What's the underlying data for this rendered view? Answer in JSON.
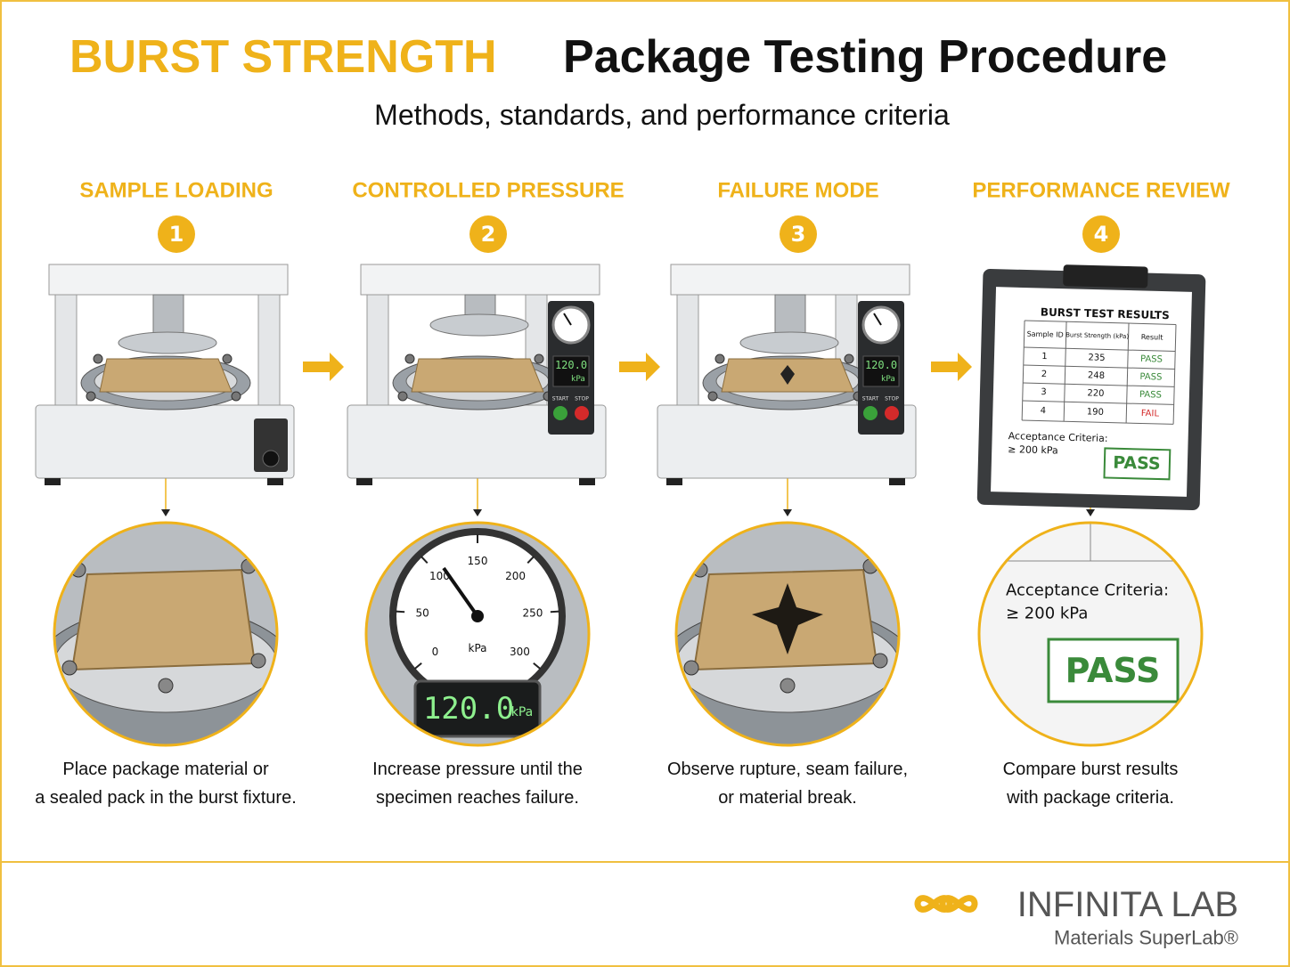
{
  "header": {
    "title_accent": "BURST STRENGTH",
    "title": "Package Testing Procedure",
    "subtitle": "Methods, standards, and performance criteria"
  },
  "steps": [
    {
      "number": "1",
      "label": "SAMPLE LOADING",
      "caption": [
        "Place package material or",
        "a sealed pack in the burst fixture."
      ]
    },
    {
      "number": "2",
      "label": "CONTROLLED PRESSURE",
      "caption": [
        "Increase pressure until the",
        "specimen reaches failure."
      ]
    },
    {
      "number": "3",
      "label": "FAILURE MODE",
      "caption": [
        "Observe rupture, seam failure,",
        "or material break."
      ]
    },
    {
      "number": "4",
      "label": "PERFORMANCE REVIEW",
      "caption": [
        "Compare burst results",
        "with package criteria."
      ]
    }
  ],
  "machine_panel": {
    "display": "120.0",
    "unit": "kPa",
    "start": "START",
    "stop": "STOP"
  },
  "gauge": {
    "ticks": [
      "0",
      "50",
      "100",
      "150",
      "200",
      "250",
      "300"
    ],
    "unit": "kPa",
    "display": "120.0",
    "display_unit": "kPa"
  },
  "results": {
    "title": "BURST TEST RESULTS",
    "columns": [
      "Sample ID",
      "Burst Strength (kPa)",
      "Result"
    ],
    "rows": [
      [
        "1",
        "235",
        "PASS"
      ],
      [
        "2",
        "248",
        "PASS"
      ],
      [
        "3",
        "220",
        "PASS"
      ],
      [
        "4",
        "190",
        "FAIL"
      ]
    ],
    "criteria_label": "Acceptance Criteria:",
    "criteria_value": "≥ 200 kPa",
    "verdict": "PASS"
  },
  "footer": {
    "brand": "INFINITA LAB",
    "tagline": "Materials SuperLab®"
  }
}
